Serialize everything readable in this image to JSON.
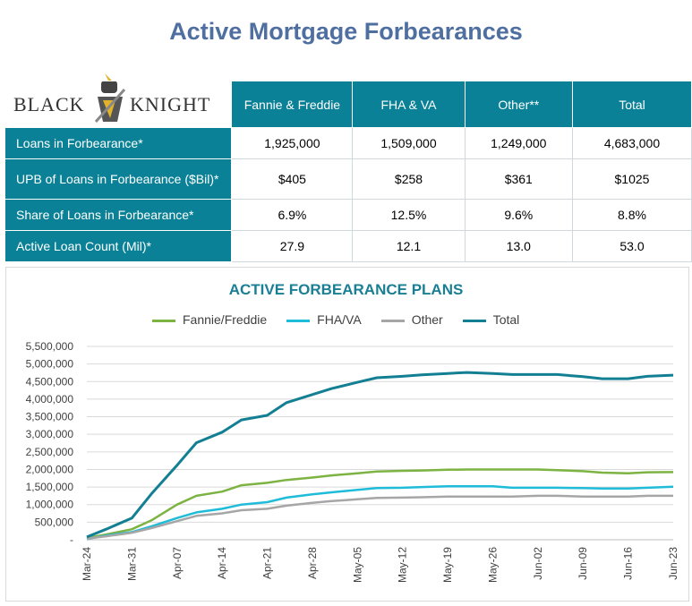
{
  "title": "Active Mortgage Forbearances",
  "logo_text": "BLACK KNIGHT",
  "table": {
    "headers": [
      "Fannie & Freddie",
      "FHA & VA",
      "Other**",
      "Total"
    ],
    "rows": [
      {
        "label": "Loans in Forbearance*",
        "values": [
          "1,925,000",
          "1,509,000",
          "1,249,000",
          "4,683,000"
        ]
      },
      {
        "label": "UPB of Loans in Forbearance ($Bil)*",
        "values": [
          "$405",
          "$258",
          "$361",
          "$1025"
        ]
      },
      {
        "label": "Share of Loans in Forbearance*",
        "values": [
          "6.9%",
          "12.5%",
          "9.6%",
          "8.8%"
        ]
      },
      {
        "label": "Active Loan Count  (Mil)*",
        "values": [
          "27.9",
          "12.1",
          "13.0",
          "53.0"
        ]
      }
    ]
  },
  "colors": {
    "header": "#0a8196",
    "title": "#4f6fa0"
  },
  "chart_data": {
    "type": "line",
    "title": "ACTIVE FORBEARANCE PLANS",
    "legend_position": "top",
    "grid": true,
    "ylim": [
      0,
      5500000
    ],
    "yticks": [
      "-",
      "500,000",
      "1,000,000",
      "1,500,000",
      "2,000,000",
      "2,500,000",
      "3,000,000",
      "3,500,000",
      "4,000,000",
      "4,500,000",
      "5,000,000",
      "5,500,000"
    ],
    "xticks": [
      "Mar-24",
      "Mar-31",
      "Apr-07",
      "Apr-14",
      "Apr-21",
      "Apr-28",
      "May-05",
      "May-12",
      "May-19",
      "May-26",
      "Jun-02",
      "Jun-09",
      "Jun-16",
      "Jun-23"
    ],
    "x": [
      "Mar-24",
      "Mar-27",
      "Mar-31",
      "Apr-03",
      "Apr-07",
      "Apr-10",
      "Apr-14",
      "Apr-17",
      "Apr-21",
      "Apr-24",
      "Apr-28",
      "May-01",
      "May-05",
      "May-08",
      "May-12",
      "May-15",
      "May-19",
      "May-22",
      "May-26",
      "May-29",
      "Jun-02",
      "Jun-05",
      "Jun-09",
      "Jun-12",
      "Jun-16",
      "Jun-19",
      "Jun-23"
    ],
    "series": [
      {
        "name": "Fannie/Freddie",
        "color": "#7cb342",
        "values": [
          50000,
          150000,
          300000,
          550000,
          1000000,
          1250000,
          1370000,
          1550000,
          1620000,
          1700000,
          1770000,
          1830000,
          1890000,
          1940000,
          1960000,
          1970000,
          1990000,
          2000000,
          2000000,
          2000000,
          2000000,
          1980000,
          1950000,
          1910000,
          1890000,
          1920000,
          1925000
        ]
      },
      {
        "name": "FHA/VA",
        "color": "#1fbcd9",
        "values": [
          20000,
          120000,
          220000,
          380000,
          620000,
          780000,
          880000,
          1000000,
          1070000,
          1200000,
          1290000,
          1350000,
          1420000,
          1470000,
          1480000,
          1500000,
          1520000,
          1520000,
          1520000,
          1480000,
          1480000,
          1480000,
          1470000,
          1460000,
          1460000,
          1480000,
          1509000
        ]
      },
      {
        "name": "Other",
        "color": "#a6a6a6",
        "values": [
          30000,
          100000,
          200000,
          330000,
          530000,
          680000,
          750000,
          840000,
          880000,
          970000,
          1050000,
          1100000,
          1150000,
          1190000,
          1200000,
          1210000,
          1230000,
          1230000,
          1230000,
          1230000,
          1250000,
          1250000,
          1230000,
          1230000,
          1230000,
          1250000,
          1249000
        ]
      },
      {
        "name": "Total",
        "color": "#137f93",
        "values": [
          80000,
          300000,
          620000,
          1300000,
          2120000,
          2760000,
          3060000,
          3410000,
          3540000,
          3900000,
          4130000,
          4300000,
          4480000,
          4610000,
          4650000,
          4690000,
          4730000,
          4760000,
          4730000,
          4700000,
          4700000,
          4700000,
          4640000,
          4580000,
          4580000,
          4650000,
          4683000
        ]
      }
    ]
  }
}
